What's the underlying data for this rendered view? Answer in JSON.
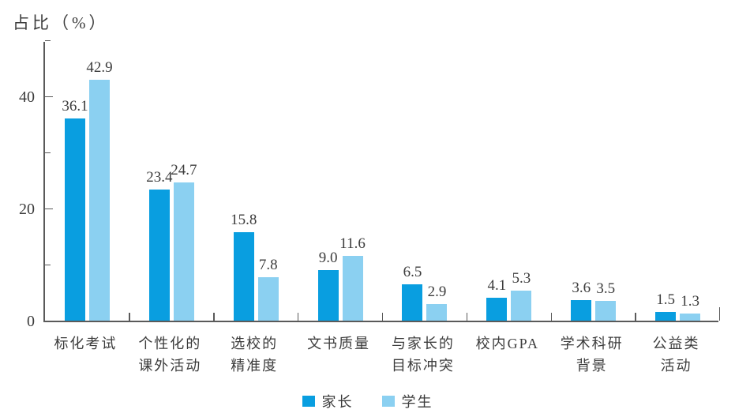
{
  "chart_data": {
    "type": "bar",
    "title": "占比（%）",
    "ylabel": "占比（%）",
    "xlabel": "",
    "categories": [
      [
        "标化考试"
      ],
      [
        "个性化的",
        "课外活动"
      ],
      [
        "选校的",
        "精准度"
      ],
      [
        "文书质量"
      ],
      [
        "与家长的",
        "目标冲突"
      ],
      [
        "校内GPA"
      ],
      [
        "学术科研",
        "背景"
      ],
      [
        "公益类活动"
      ]
    ],
    "series": [
      {
        "name": "家长",
        "color": "#099ee0",
        "values": [
          36.1,
          23.4,
          15.8,
          9.0,
          6.5,
          4.1,
          3.6,
          1.5
        ]
      },
      {
        "name": "学生",
        "color": "#8bd0f1",
        "values": [
          42.9,
          24.7,
          7.8,
          11.6,
          2.9,
          5.3,
          3.5,
          1.3
        ]
      }
    ],
    "ylim": [
      0,
      50
    ],
    "yticks_labeled": [
      0,
      20,
      40
    ],
    "yticks_minor": [
      10,
      30,
      50
    ],
    "grid": false,
    "legend_position": "bottom-center",
    "value_labels_shown": true
  },
  "colors": {
    "parents_bar": "#099ee0",
    "students_bar": "#8bd0f1",
    "axis": "#5a5a5a",
    "text": "#3c3c3c",
    "background": "#ffffff"
  }
}
